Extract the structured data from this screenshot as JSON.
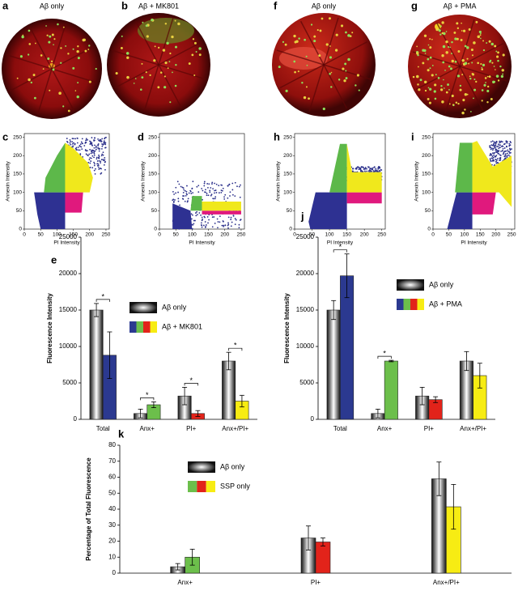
{
  "images": [
    {
      "panel": "a",
      "label": "Aβ only"
    },
    {
      "panel": "b",
      "label": "Aβ + MK801"
    },
    {
      "panel": "f",
      "label": "Aβ only"
    },
    {
      "panel": "g",
      "label": "Aβ + PMA"
    }
  ],
  "chart_data": [
    {
      "type": "density",
      "panel": "c",
      "xlabel": "PI Intensity",
      "ylabel": "Annexin Intensity",
      "xlim": [
        0,
        260
      ],
      "ylim": [
        0,
        260
      ],
      "xticks": [
        0,
        50,
        100,
        150,
        200,
        250
      ],
      "yticks": [
        0,
        50,
        100,
        150,
        200,
        250
      ]
    },
    {
      "type": "density",
      "panel": "d",
      "xlabel": "PI Intensity",
      "ylabel": "Annexin Intensity",
      "xlim": [
        0,
        260
      ],
      "ylim": [
        0,
        260
      ],
      "xticks": [
        0,
        50,
        100,
        150,
        200,
        250
      ],
      "yticks": [
        0,
        50,
        100,
        150,
        200,
        250
      ]
    },
    {
      "type": "density",
      "panel": "h",
      "xlabel": "PI Intensity",
      "ylabel": "Annexin Intensity",
      "xlim": [
        0,
        260
      ],
      "ylim": [
        0,
        260
      ],
      "xticks": [
        0,
        50,
        100,
        150,
        200,
        250
      ],
      "yticks": [
        0,
        50,
        100,
        150,
        200,
        250
      ]
    },
    {
      "type": "density",
      "panel": "i",
      "xlabel": "PI Intensity",
      "ylabel": "Annexin Intensity",
      "xlim": [
        0,
        260
      ],
      "ylim": [
        0,
        260
      ],
      "xticks": [
        0,
        50,
        100,
        150,
        200,
        250
      ],
      "yticks": [
        0,
        50,
        100,
        150,
        200,
        250
      ]
    },
    {
      "type": "bar",
      "panel": "e",
      "ylabel": "Fluorescence Intensity",
      "categories": [
        "Total",
        "Anx+",
        "PI+",
        "Anx+/PI+"
      ],
      "ylim": [
        0,
        25000
      ],
      "yticks": [
        0,
        5000,
        10000,
        15000,
        20000,
        25000
      ],
      "series": [
        {
          "name": "Aβ only",
          "gradient": [
            "#111111",
            "#ffffff"
          ],
          "values": [
            15000,
            800,
            3200,
            8000
          ],
          "errors": [
            900,
            600,
            1200,
            1200
          ]
        },
        {
          "name": "Aβ + MK801",
          "colors": [
            "#2b3990",
            "#6cbf4b",
            "#e2231a",
            "#f7ec13"
          ],
          "values": [
            8800,
            2000,
            800,
            2500
          ],
          "errors": [
            3200,
            400,
            400,
            800
          ]
        }
      ],
      "annotations": [
        "*",
        "*",
        "*",
        "*"
      ]
    },
    {
      "type": "bar",
      "panel": "j",
      "ylabel": "Fluorescence Intensity",
      "categories": [
        "Total",
        "Anx+",
        "PI+",
        "Anx+/PI+"
      ],
      "ylim": [
        0,
        25000
      ],
      "yticks": [
        0,
        5000,
        10000,
        15000,
        20000,
        25000
      ],
      "series": [
        {
          "name": "Aβ only",
          "gradient": [
            "#111111",
            "#ffffff"
          ],
          "values": [
            15000,
            800,
            3200,
            8000
          ],
          "errors": [
            1300,
            600,
            1200,
            1300
          ]
        },
        {
          "name": "Aβ + PMA",
          "colors": [
            "#2b3990",
            "#6cbf4b",
            "#e2231a",
            "#f7ec13"
          ],
          "values": [
            19700,
            8000,
            2700,
            6000
          ],
          "errors": [
            3000,
            100,
            400,
            1700
          ]
        }
      ],
      "annotations": [
        "*",
        "*",
        null,
        null
      ]
    },
    {
      "type": "bar",
      "panel": "k",
      "ylabel": "Percentage of Total Fluorescence",
      "categories": [
        "Anx+",
        "PI+",
        "Anx+/PI+"
      ],
      "ylim": [
        0,
        80
      ],
      "yticks": [
        0,
        10,
        20,
        30,
        40,
        50,
        60,
        70,
        80
      ],
      "series": [
        {
          "name": "Aβ only",
          "gradient": [
            "#111111",
            "#ffffff"
          ],
          "values": [
            4,
            22,
            59
          ],
          "errors": [
            2,
            7.5,
            10.5
          ]
        },
        {
          "name": "SSP only",
          "colors": [
            "#6cbf4b",
            "#e2231a",
            "#f7ec13"
          ],
          "values": [
            10,
            19.5,
            41.5
          ],
          "errors": [
            5,
            2.5,
            14
          ]
        }
      ]
    }
  ]
}
